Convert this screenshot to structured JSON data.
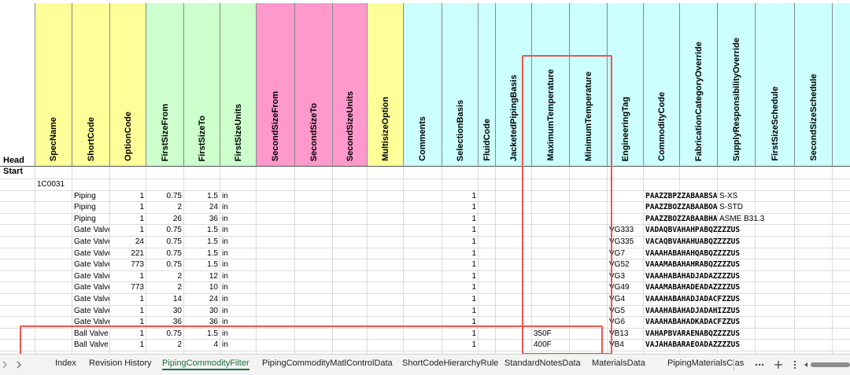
{
  "sheet": {
    "corner_labels": [
      "Head",
      "Start"
    ],
    "columns": [
      "SpecName",
      "ShortCode",
      "OptionCode",
      "FirstSizeFrom",
      "FirstSizeTo",
      "FirstSizeUnits",
      "SecondSizeFrom",
      "SecondSizeTo",
      "SecondSizeUnits",
      "MultisizeOption",
      "Comments",
      "SelectionBasis",
      "FluidCode",
      "JacketedPipingBasis",
      "MaximumTemperature",
      "MinimumTemperature",
      "EngineeringTag",
      "CommodityCode",
      "FabricationCategoryOverride",
      "SupplyResponsibilityOverride",
      "FirstSizeSchedule",
      "SecondSizeSchedule"
    ],
    "spec_name": "1C0031",
    "rows": [
      {
        "ShortCode": "Piping",
        "OptionCode": "1",
        "FirstSizeFrom": "0.75",
        "FirstSizeTo": "1.5",
        "FirstSizeUnits": "in",
        "SelectionBasis": "1",
        "CommodityCode": "PAAZZBPZZABAABSAAZZU",
        "SupplyResponsibilityOverride": "S-XS"
      },
      {
        "ShortCode": "Piping",
        "OptionCode": "1",
        "FirstSizeFrom": "2",
        "FirstSizeTo": "24",
        "FirstSizeUnits": "in",
        "SelectionBasis": "1",
        "CommodityCode": "PAAZZBOZZABAABOAAZZU",
        "SupplyResponsibilityOverride": "S-STD"
      },
      {
        "ShortCode": "Piping",
        "OptionCode": "1",
        "FirstSizeFrom": "26",
        "FirstSizeTo": "36",
        "FirstSizeUnits": "in",
        "SelectionBasis": "1",
        "CommodityCode": "PAAZZBOZZABAABHAUZZU",
        "SupplyResponsibilityOverride": "ASME B31.3"
      },
      {
        "ShortCode": "Gate Valve",
        "OptionCode": "1",
        "FirstSizeFrom": "0.75",
        "FirstSizeTo": "1.5",
        "FirstSizeUnits": "in",
        "SelectionBasis": "1",
        "EngineeringTag": "VG333",
        "CommodityCode": "VADAQBVAHAHPABQZZZZUS"
      },
      {
        "ShortCode": "Gate Valve",
        "OptionCode": "24",
        "FirstSizeFrom": "0.75",
        "FirstSizeTo": "1.5",
        "FirstSizeUnits": "in",
        "SelectionBasis": "1",
        "EngineeringTag": "VG335",
        "CommodityCode": "VACAQBVAHAHUABQZZZZUS"
      },
      {
        "ShortCode": "Gate Valve",
        "OptionCode": "221",
        "FirstSizeFrom": "0.75",
        "FirstSizeTo": "1.5",
        "FirstSizeUnits": "in",
        "SelectionBasis": "1",
        "EngineeringTag": "VG7",
        "CommodityCode": "VAAAHABAHAHQABQZZZZUS"
      },
      {
        "ShortCode": "Gate Valve",
        "OptionCode": "773",
        "FirstSizeFrom": "0.75",
        "FirstSizeTo": "1.5",
        "FirstSizeUnits": "in",
        "SelectionBasis": "1",
        "EngineeringTag": "VG52",
        "CommodityCode": "VAAAMABAHAHRABQZZZZUS"
      },
      {
        "ShortCode": "Gate Valve",
        "OptionCode": "1",
        "FirstSizeFrom": "2",
        "FirstSizeTo": "12",
        "FirstSizeUnits": "in",
        "SelectionBasis": "1",
        "EngineeringTag": "VG3",
        "CommodityCode": "VAAAHABAHADJADAZZZZUS"
      },
      {
        "ShortCode": "Gate Valve",
        "OptionCode": "773",
        "FirstSizeFrom": "2",
        "FirstSizeTo": "10",
        "FirstSizeUnits": "in",
        "SelectionBasis": "1",
        "EngineeringTag": "VG49",
        "CommodityCode": "VAAAMABAHADEADAZZZZUS"
      },
      {
        "ShortCode": "Gate Valve",
        "OptionCode": "1",
        "FirstSizeFrom": "14",
        "FirstSizeTo": "24",
        "FirstSizeUnits": "in",
        "SelectionBasis": "1",
        "EngineeringTag": "VG4",
        "CommodityCode": "VAAAHABAHADJADACFZZUS"
      },
      {
        "ShortCode": "Gate Valve",
        "OptionCode": "1",
        "FirstSizeFrom": "30",
        "FirstSizeTo": "30",
        "FirstSizeUnits": "in",
        "SelectionBasis": "1",
        "EngineeringTag": "VG5",
        "CommodityCode": "VAAAHABAHADJADAHIZZUS"
      },
      {
        "ShortCode": "Gate Valve",
        "OptionCode": "1",
        "FirstSizeFrom": "36",
        "FirstSizeTo": "36",
        "FirstSizeUnits": "in",
        "SelectionBasis": "1",
        "EngineeringTag": "VG6",
        "CommodityCode": "VAAAHABAHADKADACFZZUS"
      },
      {
        "ShortCode": "Ball Valve",
        "OptionCode": "1",
        "FirstSizeFrom": "0.75",
        "FirstSizeTo": "1.5",
        "FirstSizeUnits": "in",
        "SelectionBasis": "1",
        "MaximumTemperature": "350F",
        "EngineeringTag": "VB13",
        "CommodityCode": "VAHAPBVARAENABQZZZZUS"
      },
      {
        "ShortCode": "Ball Valve",
        "OptionCode": "1",
        "FirstSizeFrom": "2",
        "FirstSizeTo": "4",
        "FirstSizeUnits": "in",
        "SelectionBasis": "1",
        "MaximumTemperature": "400F",
        "EngineeringTag": "VB4",
        "CommodityCode": "VAJAHABARAEOADAZZZZUS"
      }
    ]
  },
  "tabs": {
    "items": [
      "Index",
      "Revision History",
      "PipingCommodityFilter",
      "PipingCommodityMatlControlData",
      "ShortCodeHierarchyRule",
      "StandardNotesData",
      "MaterialsData",
      "PipingMaterialsClas"
    ],
    "active": "PipingCommodityFilter"
  }
}
